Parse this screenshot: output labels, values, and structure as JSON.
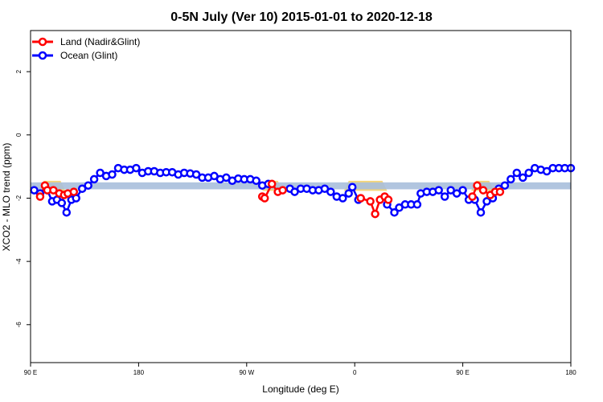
{
  "chart_data": {
    "type": "line",
    "title": "0-5N July (Ver 10)   2015-01-01 to 2020-12-18",
    "xlabel": "Longitude (deg E)",
    "ylabel": "XCO2 - MLO trend (ppm)",
    "xlim": [
      90,
      540
    ],
    "ylim": [
      -7.2,
      3.3
    ],
    "x_ticks": [
      {
        "value": 90,
        "label": "90 E"
      },
      {
        "value": 180,
        "label": "180"
      },
      {
        "value": 270,
        "label": "90 W"
      },
      {
        "value": 360,
        "label": "0"
      },
      {
        "value": 450,
        "label": "90 E"
      },
      {
        "value": 540,
        "label": "180"
      }
    ],
    "y_ticks": [
      {
        "value": 2,
        "label": "2"
      },
      {
        "value": 0,
        "label": "0"
      },
      {
        "value": -2,
        "label": "-2"
      },
      {
        "value": -4,
        "label": "-4"
      },
      {
        "value": -6,
        "label": "-6"
      }
    ],
    "reference_band": {
      "y_low": -1.72,
      "y_high": -1.5,
      "color": "#a8bfdc"
    },
    "land_shading": {
      "color": "#f5d67a",
      "regions": [
        [
          97,
          119
        ],
        [
          283,
          300
        ],
        [
          351,
          387
        ],
        [
          457,
          476
        ]
      ]
    },
    "legend": {
      "position": "top-left",
      "entries": [
        {
          "label": "Land (Nadir&Glint)",
          "color": "#ff0000"
        },
        {
          "label": "Ocean (Glint)",
          "color": "#0000ff"
        }
      ]
    },
    "series": [
      {
        "name": "Ocean (Glint)",
        "color": "#0000ff",
        "segments": [
          {
            "x": [
              93,
              98
            ],
            "y": [
              -1.75,
              -1.85
            ]
          },
          {
            "x": [
              104,
              108,
              112,
              116,
              120,
              124,
              128,
              133,
              138,
              143,
              148,
              153,
              158,
              163,
              168,
              173,
              178,
              183,
              188,
              193,
              198,
              203,
              208,
              213,
              218,
              223,
              228,
              233,
              238,
              243,
              248,
              253,
              258,
              263,
              268,
              273,
              278,
              283,
              288
            ],
            "y": [
              -1.75,
              -2.1,
              -2.05,
              -2.15,
              -2.45,
              -2.05,
              -2.0,
              -1.7,
              -1.6,
              -1.4,
              -1.2,
              -1.3,
              -1.25,
              -1.05,
              -1.1,
              -1.1,
              -1.05,
              -1.2,
              -1.15,
              -1.15,
              -1.2,
              -1.18,
              -1.18,
              -1.25,
              -1.2,
              -1.22,
              -1.25,
              -1.35,
              -1.35,
              -1.3,
              -1.4,
              -1.35,
              -1.45,
              -1.38,
              -1.4,
              -1.4,
              -1.45,
              -1.6,
              -1.55
            ]
          },
          {
            "x": [
              306,
              310,
              315,
              320,
              325,
              330,
              335,
              340,
              345,
              350,
              355,
              358,
              363
            ],
            "y": [
              -1.7,
              -1.8,
              -1.7,
              -1.7,
              -1.75,
              -1.75,
              -1.7,
              -1.8,
              -1.95,
              -2.0,
              -1.85,
              -1.65,
              -2.05
            ]
          },
          {
            "x": [
              387,
              393,
              397,
              402,
              407,
              412,
              415,
              420,
              425,
              430,
              435,
              440,
              445,
              450,
              455,
              460,
              465,
              470,
              475,
              480,
              485,
              490,
              495,
              500,
              505,
              510,
              515,
              520,
              525,
              530,
              535,
              540
            ],
            "y": [
              -2.2,
              -2.45,
              -2.3,
              -2.2,
              -2.2,
              -2.2,
              -1.85,
              -1.8,
              -1.8,
              -1.75,
              -1.95,
              -1.75,
              -1.85,
              -1.75,
              -2.05,
              -2.05,
              -2.45,
              -2.1,
              -2.0,
              -1.7,
              -1.6,
              -1.4,
              -1.2,
              -1.35,
              -1.2,
              -1.05,
              -1.1,
              -1.15,
              -1.05,
              -1.05,
              -1.05,
              -1.05
            ]
          }
        ]
      },
      {
        "name": "Land (Nadir&Glint)",
        "color": "#ff0000",
        "segments": [
          {
            "x": [
              98,
              102,
              104
            ],
            "y": [
              -1.95,
              -1.6,
              -1.75
            ]
          },
          {
            "x": [
              109,
              114,
              118,
              121,
              126
            ],
            "y": [
              -1.75,
              -1.85,
              -1.9,
              -1.85,
              -1.8
            ]
          },
          {
            "x": [
              283,
              285,
              291,
              296,
              300
            ],
            "y": [
              -1.95,
              -2.0,
              -1.55,
              -1.8,
              -1.75
            ]
          },
          {
            "x": [
              365,
              373,
              377,
              381,
              385,
              388
            ],
            "y": [
              -2.0,
              -2.1,
              -2.5,
              -2.05,
              -1.95,
              -2.05
            ]
          },
          {
            "x": [
              458,
              462,
              467,
              473,
              477,
              481
            ],
            "y": [
              -1.95,
              -1.6,
              -1.75,
              -1.9,
              -1.8,
              -1.8
            ]
          }
        ]
      }
    ]
  }
}
